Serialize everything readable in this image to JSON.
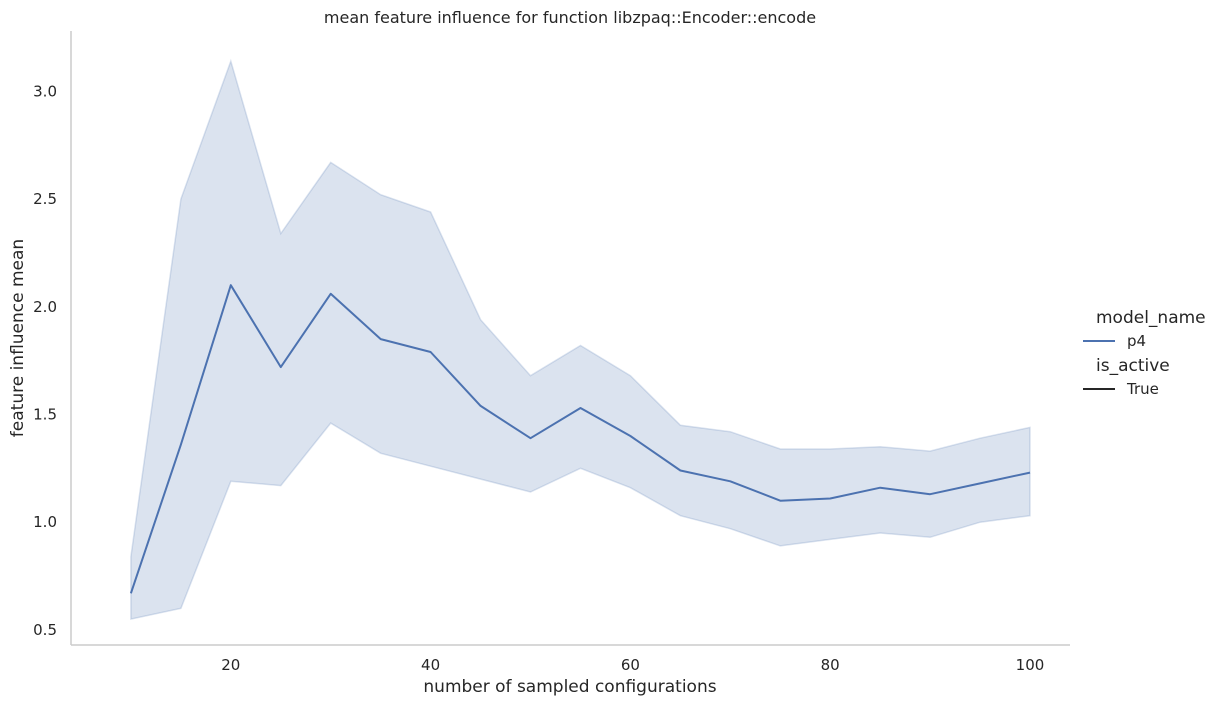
{
  "chart_data": {
    "type": "line",
    "title": "mean feature influence for function libzpaq::Encoder::encode",
    "xlabel": "number of sampled configurations",
    "ylabel": "feature influence mean",
    "xlim": [
      4,
      104
    ],
    "ylim": [
      0.43,
      3.28
    ],
    "x_ticks": [
      20,
      40,
      60,
      80,
      100
    ],
    "y_ticks": [
      0.5,
      1.0,
      1.5,
      2.0,
      2.5,
      3.0
    ],
    "x_tick_labels": [
      "20",
      "40",
      "60",
      "80",
      "100"
    ],
    "y_tick_labels": [
      "0.5",
      "1.0",
      "1.5",
      "2.0",
      "2.5",
      "3.0"
    ],
    "grid": false,
    "legend_placement": "right",
    "series": [
      {
        "name": "p4",
        "color": "#4c72b0",
        "x": [
          10,
          15,
          20,
          25,
          30,
          35,
          40,
          45,
          50,
          55,
          60,
          65,
          70,
          75,
          80,
          85,
          90,
          95,
          100
        ],
        "y": [
          0.67,
          1.36,
          2.1,
          1.72,
          2.06,
          1.85,
          1.79,
          1.54,
          1.39,
          1.53,
          1.4,
          1.24,
          1.19,
          1.1,
          1.11,
          1.16,
          1.13,
          1.18,
          1.23
        ],
        "ci_upper": [
          0.84,
          2.5,
          3.14,
          2.34,
          2.67,
          2.52,
          2.44,
          1.94,
          1.68,
          1.82,
          1.68,
          1.45,
          1.42,
          1.34,
          1.34,
          1.35,
          1.33,
          1.39,
          1.44
        ],
        "ci_lower": [
          0.55,
          0.6,
          1.19,
          1.17,
          1.46,
          1.32,
          1.26,
          1.2,
          1.14,
          1.25,
          1.16,
          1.03,
          0.97,
          0.89,
          0.92,
          0.95,
          0.93,
          1.0,
          1.03
        ]
      }
    ],
    "legend": {
      "hue_title": "model_name",
      "hue_entries": [
        {
          "label": "p4",
          "color": "#4c72b0"
        }
      ],
      "style_title": "is_active",
      "style_entries": [
        {
          "label": "True",
          "color": "#262626"
        }
      ]
    }
  }
}
